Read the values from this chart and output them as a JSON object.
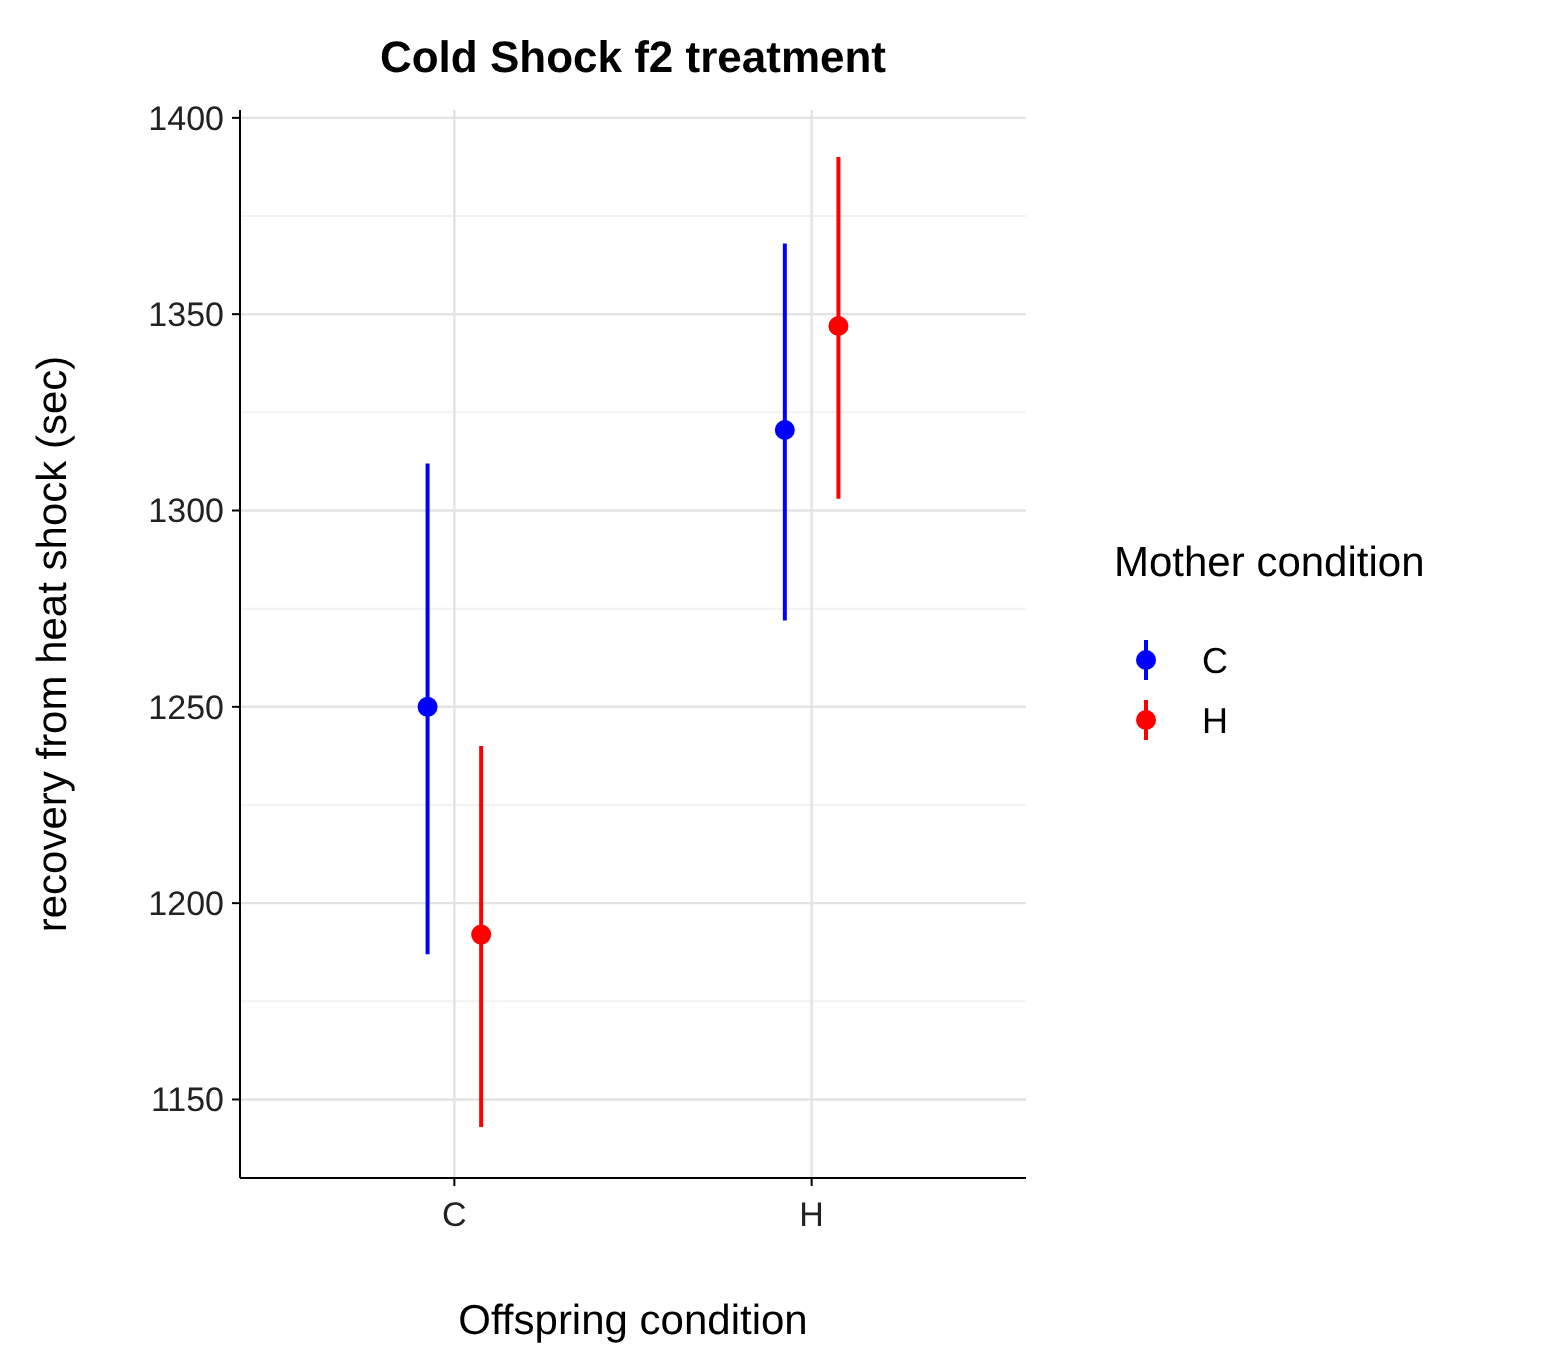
{
  "chart_data": {
    "type": "scatter",
    "title": "Cold Shock f2 treatment",
    "xlabel": "Offspring condition",
    "ylabel": "recovery from heat shock (sec)",
    "legend_title": "Mother condition",
    "categories": [
      "C",
      "H"
    ],
    "series": [
      {
        "name": "C",
        "color": "#0000ff",
        "values": [
          1250,
          1320.5
        ],
        "errors": [
          [
            1187,
            1312
          ],
          [
            1272,
            1368
          ]
        ]
      },
      {
        "name": "H",
        "color": "#ff0000",
        "values": [
          1192,
          1347
        ],
        "errors": [
          [
            1143,
            1240
          ],
          [
            1303,
            1390
          ]
        ]
      }
    ],
    "ylim": [
      1130,
      1402
    ],
    "yticks": [
      1150,
      1200,
      1250,
      1300,
      1350,
      1400
    ],
    "grid": true,
    "legend": "right",
    "marker": "circle"
  }
}
